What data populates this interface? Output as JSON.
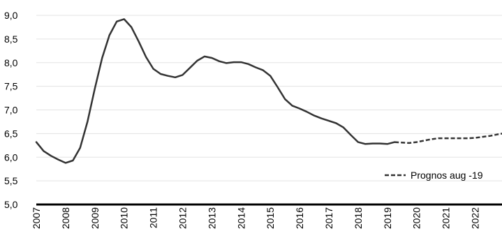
{
  "chart_data": {
    "type": "line",
    "title": "",
    "xlabel": "",
    "ylabel": "",
    "ylim": [
      5.0,
      9.0
    ],
    "yticks": [
      "9,0",
      "8,5",
      "8,0",
      "7,5",
      "7,0",
      "6,5",
      "6,0",
      "5,5",
      "5,0"
    ],
    "xlim": [
      2007.0,
      2022.92
    ],
    "xticks": [
      "2007",
      "2008",
      "2009",
      "2010",
      "2011",
      "2012",
      "2013",
      "2014",
      "2015",
      "2016",
      "2017",
      "2018",
      "2019",
      "2020",
      "2021",
      "2022"
    ],
    "grid": "horizontal",
    "legend_position": "bottom-right",
    "colors": {
      "line": "#333333",
      "grid": "#e3e3e3",
      "axis": "#000000"
    },
    "series": [
      {
        "name": "",
        "style": "solid",
        "x": [
          2007.0,
          2007.25,
          2007.5,
          2007.75,
          2008.0,
          2008.25,
          2008.5,
          2008.75,
          2009.0,
          2009.25,
          2009.5,
          2009.75,
          2010.0,
          2010.25,
          2010.5,
          2010.75,
          2011.0,
          2011.25,
          2011.5,
          2011.75,
          2012.0,
          2012.25,
          2012.5,
          2012.75,
          2013.0,
          2013.25,
          2013.5,
          2013.75,
          2014.0,
          2014.25,
          2014.5,
          2014.75,
          2015.0,
          2015.25,
          2015.5,
          2015.75,
          2016.0,
          2016.25,
          2016.5,
          2016.75,
          2017.0,
          2017.25,
          2017.5,
          2017.75,
          2018.0,
          2018.25,
          2018.5,
          2018.75,
          2019.0,
          2019.25
        ],
        "y": [
          6.32,
          6.13,
          6.03,
          5.95,
          5.88,
          5.93,
          6.2,
          6.75,
          7.45,
          8.1,
          8.58,
          8.87,
          8.92,
          8.75,
          8.45,
          8.12,
          7.87,
          7.76,
          7.72,
          7.69,
          7.74,
          7.89,
          8.04,
          8.13,
          8.1,
          8.03,
          7.99,
          8.01,
          8.01,
          7.97,
          7.9,
          7.84,
          7.72,
          7.48,
          7.23,
          7.09,
          7.03,
          6.96,
          6.88,
          6.82,
          6.77,
          6.72,
          6.63,
          6.47,
          6.32,
          6.28,
          6.29,
          6.29,
          6.28,
          6.32
        ]
      },
      {
        "name": "Prognos aug -19",
        "style": "dashed",
        "x": [
          2019.25,
          2019.5,
          2019.75,
          2020.0,
          2020.25,
          2020.5,
          2020.75,
          2021.0,
          2021.25,
          2021.5,
          2021.75,
          2022.0,
          2022.25,
          2022.5,
          2022.75,
          2022.92
        ],
        "y": [
          6.32,
          6.31,
          6.3,
          6.32,
          6.35,
          6.38,
          6.4,
          6.4,
          6.4,
          6.4,
          6.4,
          6.41,
          6.43,
          6.45,
          6.48,
          6.5
        ]
      }
    ]
  }
}
